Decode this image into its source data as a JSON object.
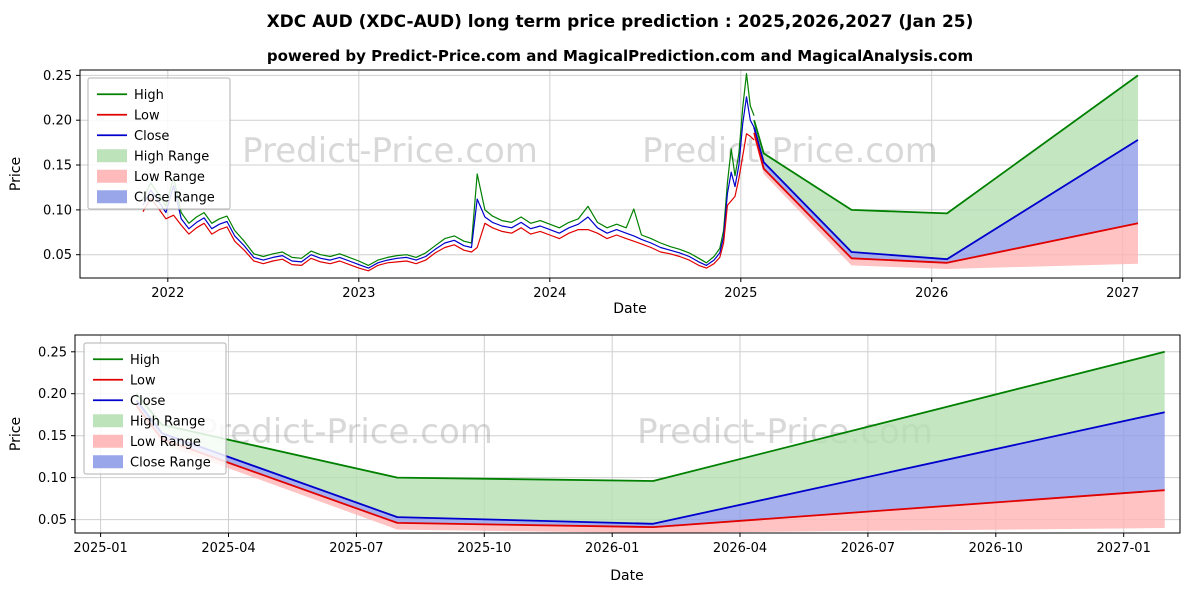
{
  "title": "XDC AUD (XDC-AUD) long term price prediction : 2025,2026,2027 (Jan 25)",
  "subtitle": "powered by Predict-Price.com and MagicalPrediction.com and MagicalAnalysis.com",
  "watermark": {
    "text": "Predict-Price.com"
  },
  "colors": {
    "high": "#008000",
    "low": "#e00000",
    "close": "#0000cc",
    "high_range": "#b5e0b2",
    "low_range": "#ffb4b4",
    "close_range": "#8e9ce8"
  },
  "legend": [
    {
      "label": "High",
      "kind": "line",
      "color": "high"
    },
    {
      "label": "Low",
      "kind": "line",
      "color": "low"
    },
    {
      "label": "Close",
      "kind": "line",
      "color": "close"
    },
    {
      "label": "High Range",
      "kind": "patch",
      "color": "high_range"
    },
    {
      "label": "Low Range",
      "kind": "patch",
      "color": "low_range"
    },
    {
      "label": "Close Range",
      "kind": "patch",
      "color": "close_range"
    }
  ],
  "chart_data": [
    {
      "type": "line",
      "name": "historical-and-forecast",
      "xlabel": "Date",
      "ylabel": "Price",
      "grid": true,
      "legend_position": "upper left",
      "xlim": [
        2021.54,
        2027.3
      ],
      "ylim": [
        0.024,
        0.256
      ],
      "x_ticks": [
        2022,
        2023,
        2024,
        2025,
        2026,
        2027
      ],
      "x_tick_labels": [
        "2022",
        "2023",
        "2024",
        "2025",
        "2026",
        "2027"
      ],
      "y_ticks": [
        0.05,
        0.1,
        0.15,
        0.2,
        0.25
      ],
      "y_tick_labels": [
        "0.05",
        "0.10",
        "0.15",
        "0.20",
        "0.25"
      ],
      "history": {
        "x": [
          2021.87,
          2021.91,
          2021.95,
          2021.99,
          2022.03,
          2022.07,
          2022.11,
          2022.15,
          2022.19,
          2022.23,
          2022.27,
          2022.31,
          2022.35,
          2022.4,
          2022.45,
          2022.5,
          2022.55,
          2022.6,
          2022.65,
          2022.7,
          2022.75,
          2022.8,
          2022.85,
          2022.9,
          2022.95,
          2023.0,
          2023.05,
          2023.1,
          2023.15,
          2023.2,
          2023.25,
          2023.3,
          2023.35,
          2023.4,
          2023.45,
          2023.5,
          2023.55,
          2023.59,
          2023.62,
          2023.66,
          2023.7,
          2023.75,
          2023.8,
          2023.85,
          2023.9,
          2023.95,
          2024.0,
          2024.05,
          2024.1,
          2024.15,
          2024.2,
          2024.25,
          2024.3,
          2024.35,
          2024.4,
          2024.44,
          2024.48,
          2024.53,
          2024.58,
          2024.63,
          2024.68,
          2024.73,
          2024.78,
          2024.82,
          2024.86,
          2024.89,
          2024.91,
          2024.93,
          2024.95,
          2024.97,
          2024.99,
          2025.01,
          2025.03,
          2025.05,
          2025.07
        ],
        "high": [
          0.112,
          0.13,
          0.118,
          0.104,
          0.136,
          0.097,
          0.085,
          0.092,
          0.097,
          0.085,
          0.09,
          0.093,
          0.077,
          0.065,
          0.051,
          0.048,
          0.051,
          0.053,
          0.047,
          0.046,
          0.054,
          0.05,
          0.048,
          0.051,
          0.047,
          0.043,
          0.038,
          0.044,
          0.047,
          0.049,
          0.05,
          0.047,
          0.052,
          0.06,
          0.068,
          0.071,
          0.065,
          0.063,
          0.14,
          0.1,
          0.093,
          0.088,
          0.086,
          0.092,
          0.085,
          0.088,
          0.084,
          0.08,
          0.086,
          0.09,
          0.104,
          0.086,
          0.08,
          0.084,
          0.08,
          0.101,
          0.072,
          0.068,
          0.063,
          0.059,
          0.056,
          0.052,
          0.046,
          0.041,
          0.048,
          0.057,
          0.077,
          0.13,
          0.168,
          0.138,
          0.163,
          0.214,
          0.252,
          0.216,
          0.205
        ],
        "low": [
          0.098,
          0.113,
          0.102,
          0.09,
          0.094,
          0.083,
          0.073,
          0.08,
          0.085,
          0.073,
          0.078,
          0.081,
          0.065,
          0.055,
          0.043,
          0.04,
          0.043,
          0.045,
          0.039,
          0.038,
          0.046,
          0.042,
          0.04,
          0.043,
          0.039,
          0.035,
          0.032,
          0.038,
          0.041,
          0.042,
          0.043,
          0.04,
          0.044,
          0.052,
          0.058,
          0.061,
          0.055,
          0.053,
          0.058,
          0.085,
          0.08,
          0.076,
          0.074,
          0.08,
          0.073,
          0.076,
          0.072,
          0.068,
          0.074,
          0.078,
          0.078,
          0.074,
          0.068,
          0.072,
          0.068,
          0.065,
          0.062,
          0.058,
          0.053,
          0.051,
          0.048,
          0.044,
          0.038,
          0.035,
          0.04,
          0.047,
          0.063,
          0.105,
          0.11,
          0.115,
          0.135,
          0.16,
          0.185,
          0.182,
          0.178
        ],
        "close": [
          0.105,
          0.122,
          0.11,
          0.097,
          0.127,
          0.09,
          0.079,
          0.086,
          0.091,
          0.079,
          0.084,
          0.087,
          0.071,
          0.06,
          0.047,
          0.044,
          0.047,
          0.049,
          0.043,
          0.042,
          0.05,
          0.046,
          0.044,
          0.047,
          0.043,
          0.039,
          0.035,
          0.041,
          0.044,
          0.046,
          0.047,
          0.044,
          0.048,
          0.056,
          0.063,
          0.066,
          0.06,
          0.058,
          0.112,
          0.092,
          0.086,
          0.082,
          0.08,
          0.086,
          0.079,
          0.082,
          0.078,
          0.074,
          0.08,
          0.084,
          0.092,
          0.08,
          0.074,
          0.078,
          0.074,
          0.071,
          0.067,
          0.063,
          0.058,
          0.055,
          0.052,
          0.048,
          0.042,
          0.038,
          0.044,
          0.052,
          0.07,
          0.118,
          0.142,
          0.126,
          0.15,
          0.196,
          0.226,
          0.2,
          0.192
        ]
      },
      "forecast": {
        "x": [
          2025.07,
          2025.12,
          2025.58,
          2026.08,
          2027.08
        ],
        "high": [
          0.2,
          0.163,
          0.1,
          0.096,
          0.25
        ],
        "close": [
          0.192,
          0.153,
          0.053,
          0.045,
          0.178
        ],
        "low": [
          0.186,
          0.146,
          0.046,
          0.041,
          0.085
        ],
        "low_bottom": [
          0.18,
          0.14,
          0.038,
          0.034,
          0.04
        ]
      }
    },
    {
      "type": "line",
      "name": "forecast-detail",
      "xlabel": "Date",
      "ylabel": "Price",
      "grid": true,
      "legend_position": "upper left",
      "xlim": [
        2024.95,
        2027.11
      ],
      "ylim": [
        0.034,
        0.27
      ],
      "x_ticks": [
        2025.0,
        2025.25,
        2025.5,
        2025.75,
        2026.0,
        2026.25,
        2026.5,
        2026.75,
        2027.0
      ],
      "x_tick_labels": [
        "2025-01",
        "2025-04",
        "2025-07",
        "2025-10",
        "2026-01",
        "2026-04",
        "2026-07",
        "2026-10",
        "2027-01"
      ],
      "y_ticks": [
        0.05,
        0.1,
        0.15,
        0.2,
        0.25
      ],
      "y_tick_labels": [
        "0.05",
        "0.10",
        "0.15",
        "0.20",
        "0.25"
      ],
      "forecast": {
        "x": [
          2025.07,
          2025.12,
          2025.58,
          2026.08,
          2027.08
        ],
        "high": [
          0.2,
          0.163,
          0.1,
          0.096,
          0.25
        ],
        "close": [
          0.192,
          0.153,
          0.053,
          0.045,
          0.178
        ],
        "low": [
          0.186,
          0.146,
          0.046,
          0.041,
          0.085
        ],
        "low_bottom": [
          0.18,
          0.14,
          0.038,
          0.034,
          0.04
        ]
      }
    }
  ]
}
